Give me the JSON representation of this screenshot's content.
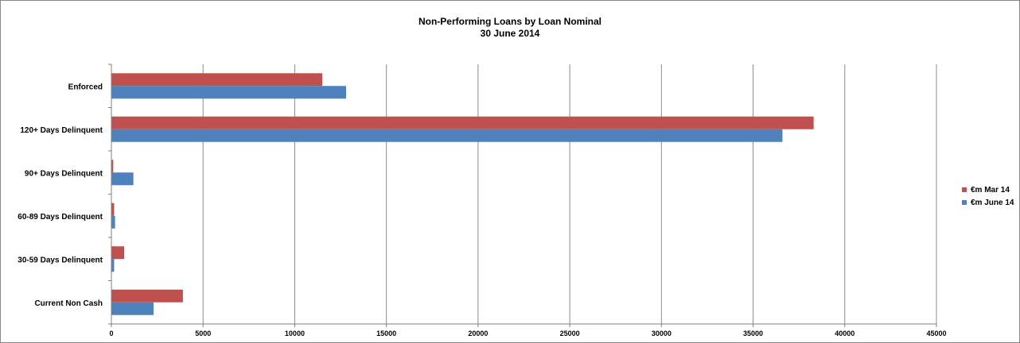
{
  "chart_data": {
    "type": "bar",
    "orientation": "horizontal",
    "title": "Non-Performing Loans by Loan Nominal",
    "subtitle": "30 June 2014",
    "categories": [
      "Enforced",
      "120+ Days Delinquent",
      "90+ Days Delinquent",
      "60-89 Days Delinquent",
      "30-59 Days Delinquent",
      "Current Non Cash"
    ],
    "series": [
      {
        "name": "€m Mar 14",
        "color": "#C0504D",
        "values": [
          11500,
          38300,
          100,
          150,
          700,
          3900
        ]
      },
      {
        "name": "€m June 14",
        "color": "#4F81BD",
        "values": [
          12800,
          36600,
          1200,
          200,
          150,
          2300
        ]
      }
    ],
    "xlim": [
      0,
      45000
    ],
    "xticks": [
      0,
      5000,
      10000,
      15000,
      20000,
      25000,
      30000,
      35000,
      40000,
      45000
    ],
    "grid": true,
    "legend_position": "right"
  }
}
